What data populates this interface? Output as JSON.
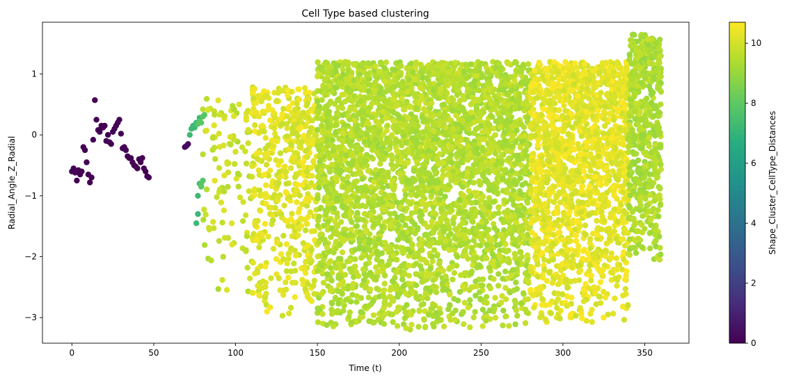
{
  "chart_data": {
    "type": "scatter",
    "title": "Cell Type based clustering",
    "xlabel": "Time (t)",
    "ylabel": "Radial_Angle_Z_Radial",
    "xlim": [
      -18,
      377
    ],
    "ylim": [
      -3.42,
      1.85
    ],
    "xticks": [
      0,
      50,
      100,
      150,
      200,
      250,
      300,
      350
    ],
    "yticks": [
      -3,
      -2,
      -1,
      0,
      1
    ],
    "grid": false,
    "colorbar": {
      "label": "Shape_Cluster_CellType_Distances",
      "colormap": "viridis",
      "range": [
        0,
        10.7
      ],
      "ticks": [
        0,
        2,
        4,
        6,
        8,
        10
      ]
    },
    "scatter_groups": [
      {
        "color_value": 0,
        "points": [
          [
            0,
            -0.6
          ],
          [
            1,
            -0.55
          ],
          [
            2,
            -0.62
          ],
          [
            3,
            -0.75
          ],
          [
            4,
            -0.58
          ],
          [
            5,
            -0.65
          ],
          [
            6,
            -0.6
          ],
          [
            7,
            -0.2
          ],
          [
            8,
            -0.25
          ],
          [
            9,
            -0.45
          ],
          [
            10,
            -0.65
          ],
          [
            11,
            -0.78
          ],
          [
            12,
            -0.7
          ],
          [
            13,
            -0.08
          ],
          [
            14,
            0.57
          ],
          [
            15,
            0.25
          ],
          [
            16,
            0.08
          ],
          [
            17,
            0.05
          ],
          [
            18,
            0.15
          ],
          [
            19,
            0.12
          ],
          [
            20,
            0.15
          ],
          [
            21,
            -0.1
          ],
          [
            22,
            0.0
          ],
          [
            23,
            -0.12
          ],
          [
            24,
            -0.15
          ],
          [
            25,
            0.05
          ],
          [
            26,
            0.1
          ],
          [
            27,
            0.15
          ],
          [
            28,
            0.2
          ],
          [
            29,
            0.25
          ],
          [
            30,
            0.02
          ],
          [
            31,
            -0.22
          ],
          [
            32,
            -0.2
          ],
          [
            33,
            -0.25
          ],
          [
            34,
            -0.35
          ],
          [
            35,
            -0.38
          ],
          [
            36,
            -0.38
          ],
          [
            37,
            -0.45
          ],
          [
            38,
            -0.5
          ],
          [
            39,
            -0.52
          ],
          [
            40,
            -0.55
          ],
          [
            41,
            -0.4
          ],
          [
            42,
            -0.45
          ],
          [
            43,
            -0.38
          ],
          [
            44,
            -0.55
          ],
          [
            45,
            -0.6
          ],
          [
            46,
            -0.68
          ],
          [
            47,
            -0.7
          ]
        ]
      },
      {
        "color_value": 0.3,
        "points": [
          [
            69,
            -0.2
          ],
          [
            70,
            -0.18
          ],
          [
            71,
            -0.15
          ]
        ]
      },
      {
        "color_value": 7.2,
        "points": [
          [
            72,
            0.0
          ],
          [
            73,
            0.1
          ],
          [
            74,
            0.15
          ],
          [
            75,
            0.12
          ],
          [
            76,
            0.2
          ],
          [
            76,
            -1.45
          ],
          [
            77,
            -1.3
          ],
          [
            77,
            -1.0
          ],
          [
            78,
            -0.8
          ],
          [
            78,
            0.28
          ]
        ]
      },
      {
        "color_value": 7.9,
        "points": [
          [
            77,
            0.18
          ],
          [
            78,
            0.22
          ],
          [
            79,
            0.2
          ],
          [
            79,
            -0.8
          ],
          [
            80,
            -0.75
          ],
          [
            80,
            0.3
          ],
          [
            81,
            0.33
          ],
          [
            79,
            -0.85
          ]
        ]
      }
    ],
    "scatter_bands": [
      {
        "x_range": [
          80,
          110
        ],
        "y_range": [
          -2.6,
          0.6
        ],
        "color_value": 9.8,
        "density": "sparse"
      },
      {
        "x_range": [
          110,
          150
        ],
        "y_range": [
          -3.0,
          0.8
        ],
        "color_value": 10.2,
        "density": "medium"
      },
      {
        "x_range": [
          150,
          280
        ],
        "y_range": [
          -3.2,
          1.2
        ],
        "color_value": 9.5,
        "density": "dense"
      },
      {
        "x_range": [
          280,
          340
        ],
        "y_range": [
          -3.1,
          1.2
        ],
        "color_value": 10.3,
        "density": "dense"
      },
      {
        "x_range": [
          340,
          360
        ],
        "y_range": [
          -2.1,
          1.65
        ],
        "color_value": 9.4,
        "density": "dense"
      }
    ]
  }
}
